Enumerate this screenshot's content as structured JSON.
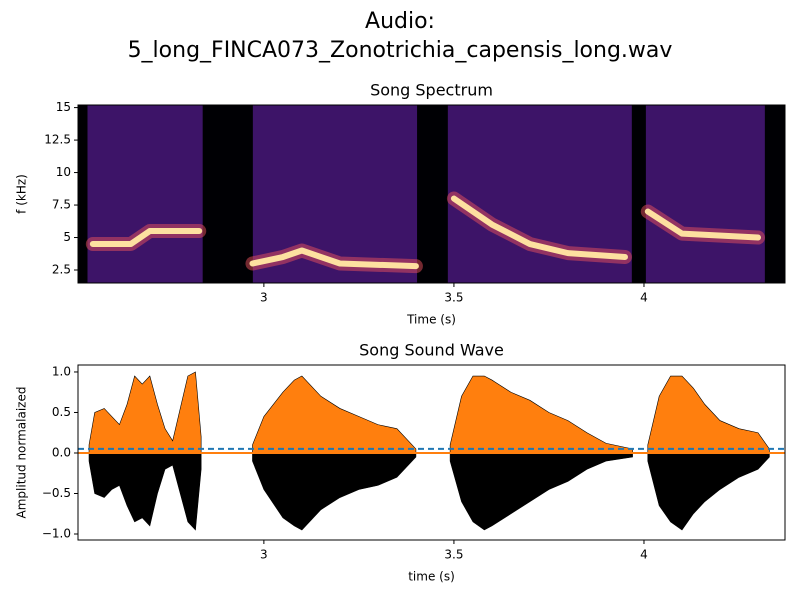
{
  "title": "Audio:",
  "subtitle": "5_long_FINCA073_Zonotrichia_capensis_long.wav",
  "chart_data": [
    {
      "type": "spectrogram",
      "title": "Song Spectrum",
      "xlabel": "Time (s)",
      "ylabel": "f (kHz)",
      "xlim": [
        2.511,
        4.371
      ],
      "ylim": [
        1.5,
        15.2
      ],
      "xticks": [
        3,
        3.5,
        4
      ],
      "yticks": [
        2.5,
        5,
        7.5,
        10,
        12.5,
        15
      ],
      "segments": [
        [
          2.536,
          2.839
        ],
        [
          2.971,
          3.403
        ],
        [
          3.484,
          3.968
        ],
        [
          4.005,
          4.318
        ]
      ],
      "segment_color": "#3d1468",
      "contour": {
        "color": "#fde0a0",
        "x": [
          2.55,
          2.65,
          2.7,
          2.83,
          null,
          2.97,
          3.05,
          3.1,
          3.2,
          3.4,
          null,
          3.5,
          3.6,
          3.7,
          3.8,
          3.95,
          null,
          4.01,
          4.1,
          4.3
        ],
        "y": [
          4.5,
          4.5,
          5.5,
          5.5,
          null,
          3,
          3.5,
          4,
          3,
          2.8,
          null,
          8,
          6,
          4.5,
          3.8,
          3.5,
          null,
          7,
          5.3,
          5
        ]
      }
    },
    {
      "type": "waveform",
      "title": "Song Sound Wave",
      "xlabel": "time (s)",
      "ylabel": "Amplitud normalaized",
      "xlim": [
        2.511,
        4.371
      ],
      "ylim": [
        -1.074,
        1.086
      ],
      "xticks": [
        3,
        3.5,
        4
      ],
      "yticks": [
        {
          "value": -1,
          "label": "−1.0"
        },
        {
          "value": -0.5,
          "label": "−0.5"
        },
        {
          "value": 0,
          "label": "0.0"
        },
        {
          "value": 0.5,
          "label": "0.5"
        },
        {
          "value": 1,
          "label": "1.0"
        }
      ],
      "threshold": 0.05,
      "threshold_color": "#1f77b4",
      "x": [
        2.54,
        2.555,
        2.58,
        2.6,
        2.62,
        2.64,
        2.66,
        2.68,
        2.7,
        2.72,
        2.74,
        2.76,
        2.78,
        2.8,
        2.82,
        2.835,
        null,
        2.97,
        3.0,
        3.05,
        3.08,
        3.1,
        3.15,
        3.2,
        3.25,
        3.3,
        3.35,
        3.4,
        null,
        3.49,
        3.52,
        3.55,
        3.58,
        3.6,
        3.65,
        3.7,
        3.75,
        3.8,
        3.85,
        3.9,
        3.97,
        null,
        4.01,
        4.04,
        4.07,
        4.1,
        4.13,
        4.16,
        4.2,
        4.25,
        4.3,
        4.33
      ],
      "upper": {
        "color": "#ff7f0e",
        "values": [
          0.1,
          0.5,
          0.55,
          0.45,
          0.35,
          0.6,
          0.95,
          0.85,
          0.95,
          0.6,
          0.3,
          0.15,
          0.55,
          0.95,
          1.0,
          0.2,
          null,
          0.1,
          0.45,
          0.75,
          0.9,
          0.95,
          0.7,
          0.55,
          0.45,
          0.35,
          0.3,
          0.05,
          null,
          0.1,
          0.7,
          0.95,
          0.95,
          0.9,
          0.75,
          0.65,
          0.5,
          0.4,
          0.25,
          0.12,
          0.05,
          null,
          0.1,
          0.7,
          0.95,
          0.95,
          0.8,
          0.6,
          0.4,
          0.3,
          0.25,
          0.05
        ]
      },
      "lower": {
        "color": "#000000",
        "values": [
          -0.1,
          -0.5,
          -0.55,
          -0.45,
          -0.4,
          -0.65,
          -0.85,
          -0.8,
          -0.9,
          -0.5,
          -0.2,
          -0.15,
          -0.5,
          -0.85,
          -0.95,
          -0.2,
          null,
          -0.1,
          -0.45,
          -0.8,
          -0.9,
          -0.95,
          -0.7,
          -0.55,
          -0.45,
          -0.4,
          -0.3,
          -0.05,
          null,
          -0.1,
          -0.6,
          -0.85,
          -0.95,
          -0.9,
          -0.75,
          -0.6,
          -0.45,
          -0.35,
          -0.2,
          -0.1,
          -0.05,
          null,
          -0.1,
          -0.65,
          -0.85,
          -0.95,
          -0.75,
          -0.6,
          -0.45,
          -0.3,
          -0.2,
          -0.05
        ]
      }
    }
  ]
}
